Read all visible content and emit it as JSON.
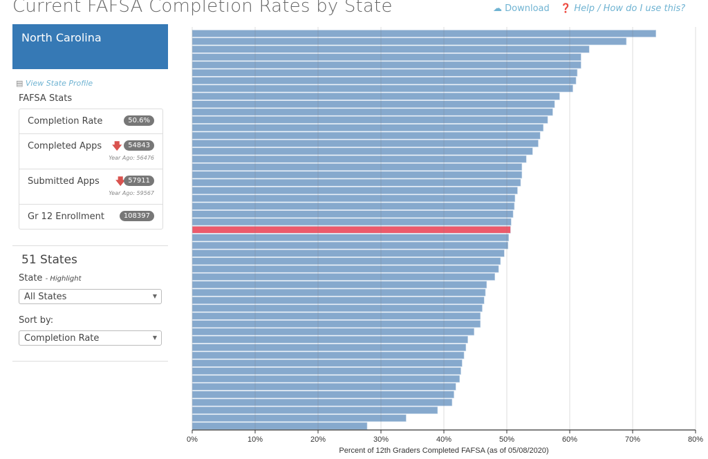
{
  "title": "Current FAFSA Completion Rates by State",
  "links": {
    "download": "Download",
    "help": "Help / How do I use this?",
    "download_icon": "cloud-download-icon",
    "help_icon": "question-circle-icon"
  },
  "sidebar": {
    "state_name": "North Carolina",
    "view_profile": "View State Profile",
    "stats_label": "FAFSA Stats",
    "stats": [
      {
        "label": "Completion Rate",
        "value": "50.6%"
      },
      {
        "label": "Completed Apps",
        "value": "54843",
        "trend": "down",
        "year_ago": "Year Ago: 56476"
      },
      {
        "label": "Submitted Apps",
        "value": "57911",
        "trend": "down",
        "year_ago": "Year Ago: 59567"
      },
      {
        "label": "Gr 12 Enrollment",
        "value": "108397"
      }
    ],
    "count": "51 States",
    "state_label": "State",
    "state_hint": "- Highlight",
    "state_value": "All States",
    "sort_label": "Sort by:",
    "sort_value": "Completion Rate"
  },
  "colors": {
    "bar": "#86a9cd",
    "highlight": "#ec5a6b",
    "header": "#3679b5"
  },
  "chart_data": {
    "type": "bar",
    "orientation": "horizontal",
    "xlabel": "Percent of 12th Graders Completed FAFSA (as of 05/08/2020)",
    "xlim": [
      0,
      80
    ],
    "xticks": [
      "0%",
      "10%",
      "20%",
      "30%",
      "40%",
      "50%",
      "60%",
      "70%",
      "80%"
    ],
    "grid": true,
    "highlight_index": 25,
    "values": [
      73.7,
      69.0,
      63.1,
      61.8,
      61.8,
      61.2,
      61.0,
      60.5,
      58.4,
      57.6,
      57.3,
      56.5,
      55.8,
      55.3,
      55.0,
      54.1,
      53.1,
      52.4,
      52.4,
      52.2,
      51.7,
      51.3,
      51.2,
      51.0,
      50.7,
      50.6,
      50.3,
      50.2,
      49.6,
      49.0,
      48.7,
      48.1,
      46.8,
      46.6,
      46.4,
      46.1,
      45.8,
      45.8,
      44.8,
      43.8,
      43.5,
      43.2,
      42.9,
      42.7,
      42.5,
      41.9,
      41.6,
      41.3,
      39.0,
      34.0,
      27.8
    ]
  }
}
